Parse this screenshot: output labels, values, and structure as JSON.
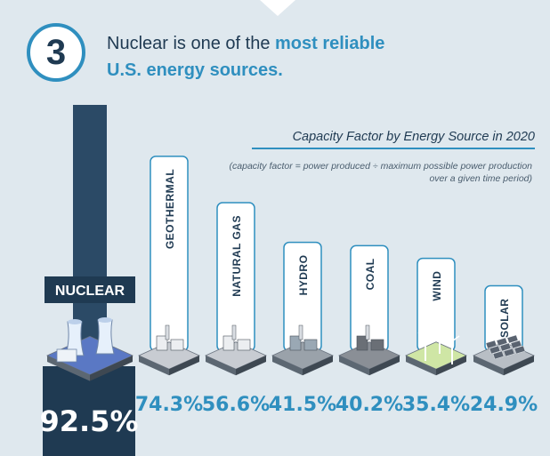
{
  "header": {
    "step_number": "3",
    "headline_plain": "Nuclear is one of the ",
    "headline_bold_1": "most reliable",
    "headline_bold_2": "U.S. energy sources."
  },
  "chart_data": {
    "type": "bar",
    "title": "Capacity Factor by Energy Source in 2020",
    "note": "(capacity factor = power produced ÷ maximum possible power production over a given time period)",
    "categories": [
      "NUCLEAR",
      "GEOTHERMAL",
      "NATURAL GAS",
      "HYDRO",
      "COAL",
      "WIND",
      "SOLAR"
    ],
    "values": [
      92.5,
      74.3,
      56.6,
      41.5,
      40.2,
      35.4,
      24.9
    ],
    "value_labels": [
      "92.5%",
      "74.3%",
      "56.6%",
      "41.5%",
      "40.2%",
      "35.4%",
      "24.9%"
    ],
    "unit": "%",
    "ylim": [
      0,
      100
    ],
    "grid": false,
    "legend": "none"
  },
  "icons": [
    "nuclear-plant-icon",
    "geothermal-plant-icon",
    "gas-plant-icon",
    "hydro-dam-icon",
    "coal-plant-icon",
    "wind-farm-icon",
    "solar-farm-icon"
  ],
  "colors": {
    "background": "#dfe8ee",
    "accent": "#2f8fbf",
    "navy": "#1f3a52",
    "nuclear_bar": "#2b4a66",
    "bar_outline": "#2f8fbf"
  }
}
